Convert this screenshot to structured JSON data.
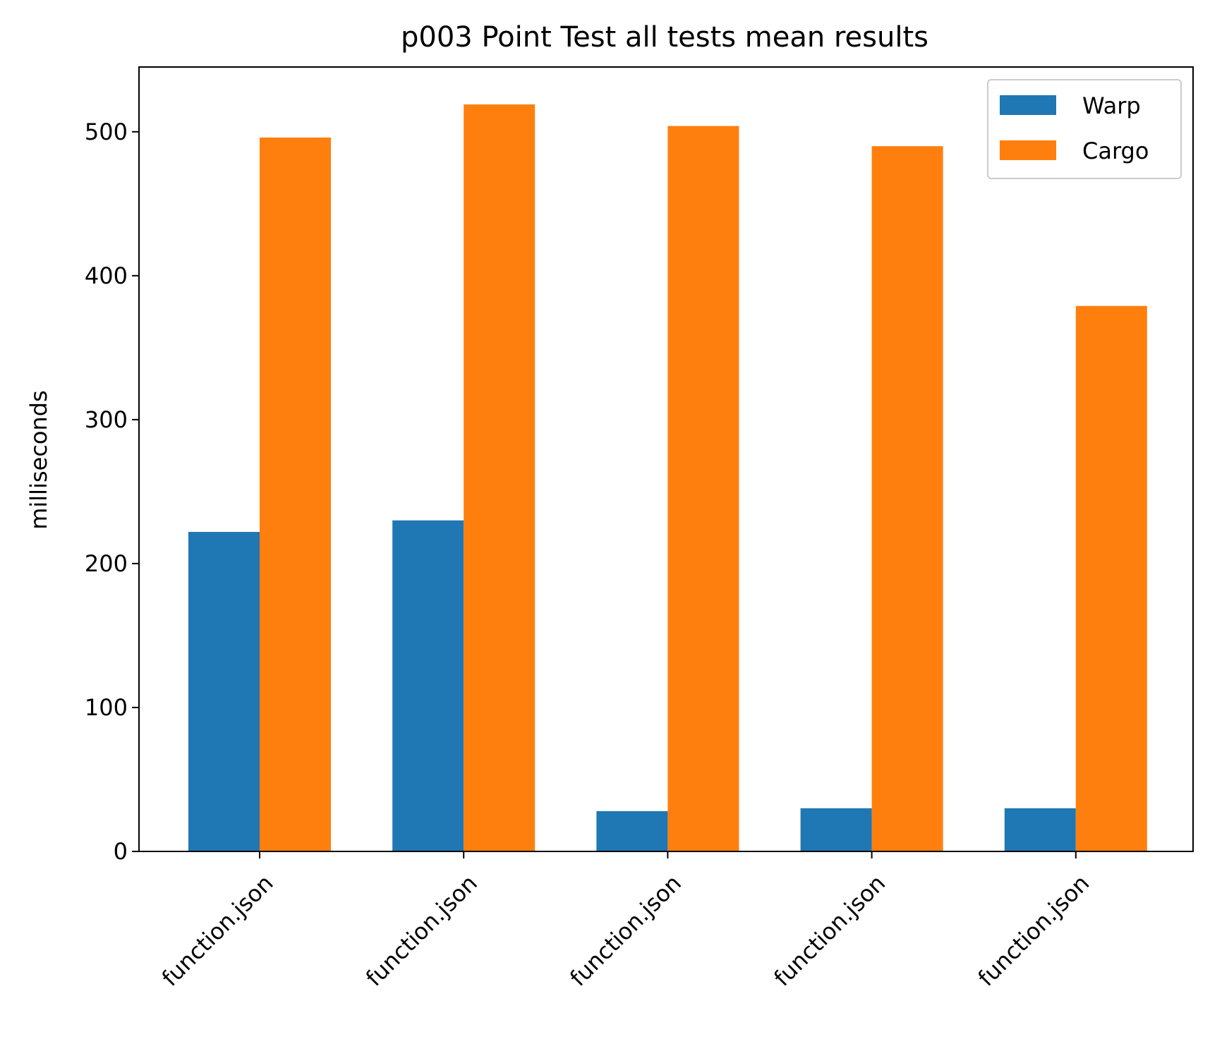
{
  "chart_data": {
    "type": "bar",
    "title": "p003 Point Test all tests mean results",
    "xlabel": "",
    "ylabel": "milliseconds",
    "categories": [
      "function.json",
      "function.json",
      "function.json",
      "function.json",
      "function.json"
    ],
    "series": [
      {
        "name": "Warp",
        "color": "#1f77b4",
        "values": [
          222,
          230,
          28,
          30,
          30
        ]
      },
      {
        "name": "Cargo",
        "color": "#ff7f0e",
        "values": [
          496,
          519,
          504,
          490,
          379
        ]
      }
    ],
    "ylim": [
      0,
      545
    ],
    "yticks": [
      0,
      100,
      200,
      300,
      400,
      500
    ],
    "x_tick_rotation": -45,
    "legend_position": "top-right",
    "grid": false
  }
}
